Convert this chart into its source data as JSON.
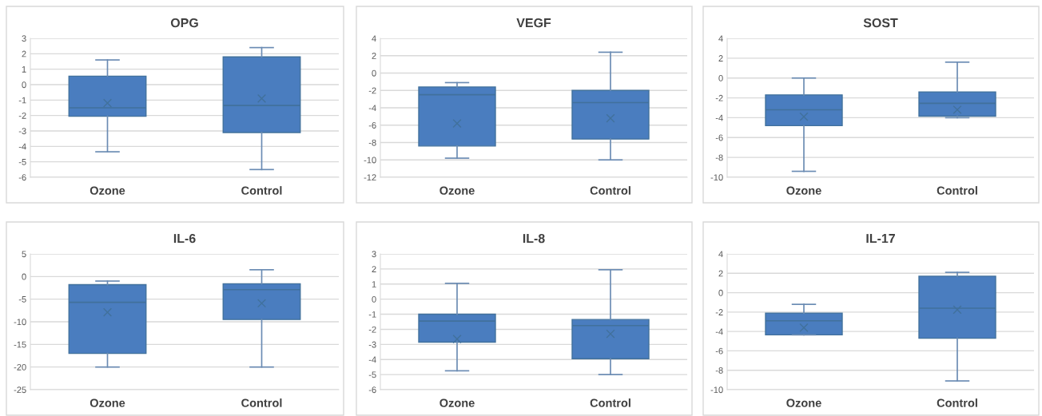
{
  "chart_data": [
    {
      "type": "box",
      "title": "OPG",
      "categories": [
        "Ozone",
        "Control"
      ],
      "color": "#4a7dbf",
      "marker": "cross",
      "grid": "y",
      "ylim": [
        -6,
        3
      ],
      "yticks": [
        -6,
        -5,
        -4,
        -3,
        -2,
        -1,
        0,
        1,
        2,
        3
      ],
      "boxes": [
        {
          "low": -4.35,
          "q1": -2.05,
          "median": -1.5,
          "q3": 0.55,
          "high": 1.6,
          "mean": -1.2
        },
        {
          "low": -5.5,
          "q1": -3.1,
          "median": -1.35,
          "q3": 1.8,
          "high": 2.4,
          "mean": -0.9
        }
      ]
    },
    {
      "type": "box",
      "title": "VEGF",
      "categories": [
        "Ozone",
        "Control"
      ],
      "color": "#4a7dbf",
      "marker": "cross",
      "grid": "y",
      "ylim": [
        -12,
        4
      ],
      "yticks": [
        -12,
        -10,
        -8,
        -6,
        -4,
        -2,
        0,
        2,
        4
      ],
      "boxes": [
        {
          "low": -9.8,
          "q1": -8.4,
          "median": -2.5,
          "q3": -1.6,
          "high": -1.1,
          "mean": -5.8
        },
        {
          "low": -10,
          "q1": -7.6,
          "median": -3.4,
          "q3": -2,
          "high": 2.4,
          "mean": -5.2
        }
      ]
    },
    {
      "type": "box",
      "title": "SOST",
      "categories": [
        "Ozone",
        "Control"
      ],
      "color": "#4a7dbf",
      "marker": "cross",
      "grid": "y",
      "ylim": [
        -10,
        4
      ],
      "yticks": [
        -10,
        -8,
        -6,
        -4,
        -2,
        0,
        2,
        4
      ],
      "boxes": [
        {
          "low": -9.4,
          "q1": -4.8,
          "median": -3.2,
          "q3": -1.7,
          "high": 0,
          "mean": -3.9
        },
        {
          "low": -4.0,
          "q1": -3.85,
          "median": -2.55,
          "q3": -1.4,
          "high": 1.6,
          "mean": -3.2
        }
      ]
    },
    {
      "type": "box",
      "title": "IL-6",
      "categories": [
        "Ozone",
        "Control"
      ],
      "color": "#4a7dbf",
      "marker": "cross",
      "grid": "y",
      "ylim": [
        -25,
        5
      ],
      "yticks": [
        -25,
        -20,
        -15,
        -10,
        -5,
        0,
        5
      ],
      "boxes": [
        {
          "low": -20,
          "q1": -17,
          "median": -5.7,
          "q3": -1.8,
          "high": -1.0,
          "mean": -7.9
        },
        {
          "low": -20,
          "q1": -9.5,
          "median": -2.9,
          "q3": -1.6,
          "high": 1.5,
          "mean": -5.9
        }
      ]
    },
    {
      "type": "box",
      "title": "IL-8",
      "categories": [
        "Ozone",
        "Control"
      ],
      "color": "#4a7dbf",
      "marker": "cross",
      "grid": "y",
      "ylim": [
        -6,
        3
      ],
      "yticks": [
        -6,
        -5,
        -4,
        -3,
        -2,
        -1,
        0,
        1,
        2,
        3
      ],
      "boxes": [
        {
          "low": -4.75,
          "q1": -2.85,
          "median": -1.45,
          "q3": -1.0,
          "high": 1.05,
          "mean": -2.65
        },
        {
          "low": -5,
          "q1": -3.95,
          "median": -1.75,
          "q3": -1.35,
          "high": 1.95,
          "mean": -2.3
        }
      ]
    },
    {
      "type": "box",
      "title": "IL-17",
      "categories": [
        "Ozone",
        "Control"
      ],
      "color": "#4a7dbf",
      "marker": "cross",
      "grid": "y",
      "ylim": [
        -10,
        4
      ],
      "yticks": [
        -10,
        -8,
        -6,
        -4,
        -2,
        0,
        2,
        4
      ],
      "boxes": [
        {
          "low": -4.35,
          "q1": -4.35,
          "median": -2.9,
          "q3": -2.1,
          "high": -1.2,
          "mean": -3.6
        },
        {
          "low": -9.1,
          "q1": -4.7,
          "median": -1.6,
          "q3": 1.7,
          "high": 2.1,
          "mean": -1.75
        }
      ]
    }
  ]
}
